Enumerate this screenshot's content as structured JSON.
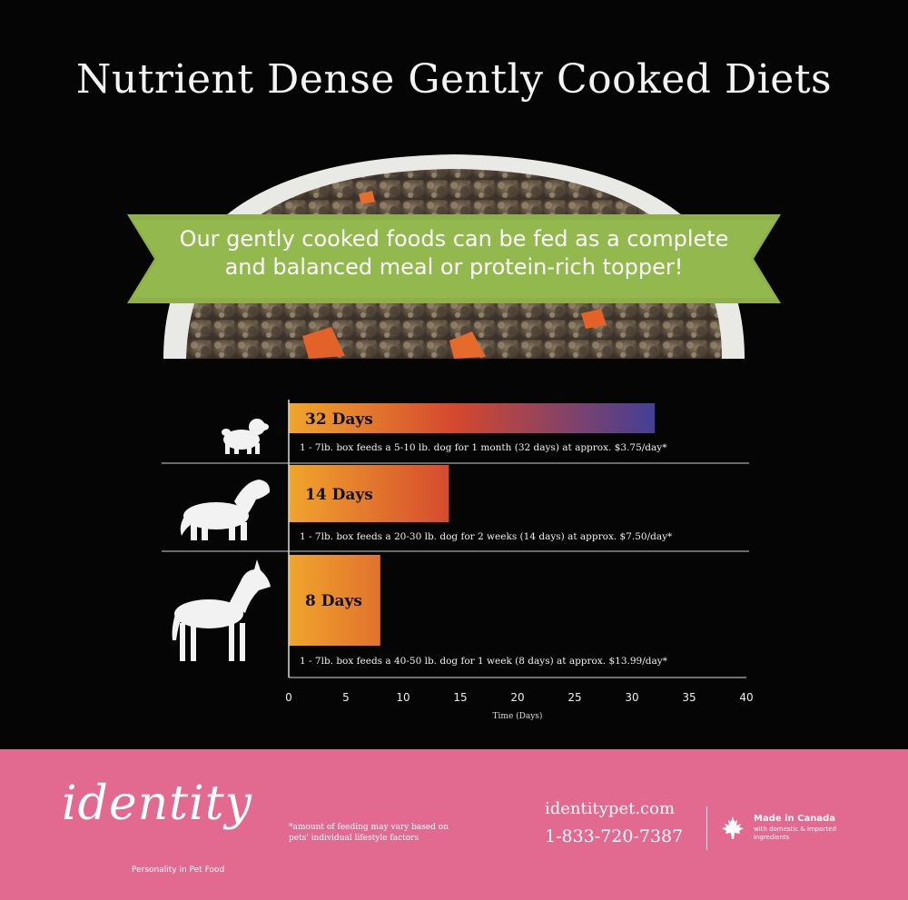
{
  "header": {
    "title": "Nutrient Dense Gently Cooked Diets"
  },
  "banner": {
    "line1": "Our gently cooked foods can be fed as a complete",
    "line2": "and balanced meal or protein-rich topper!"
  },
  "chart_data": {
    "type": "bar",
    "orientation": "horizontal",
    "categories": [
      "small-dog",
      "medium-dog",
      "large-dog"
    ],
    "values": [
      32,
      14,
      8
    ],
    "bar_labels": [
      "32 Days",
      "14 Days",
      "8 Days"
    ],
    "notes": [
      "1 - 7lb. box feeds a 5-10 lb. dog for 1 month (32 days) at approx. $3.75/day*",
      "1 - 7lb. box feeds a 20-30 lb. dog for 2 weeks (14 days) at approx. $7.50/day*",
      "1 - 7lb. box feeds a 40-50 lb. dog for 1 week (8 days) at approx. $13.99/day*"
    ],
    "xlabel": "Time (Days)",
    "xlim": [
      0,
      40
    ],
    "xticks": [
      0,
      5,
      10,
      15,
      20,
      25,
      30,
      35,
      40
    ],
    "grid": false,
    "colors": {
      "gradient_start": "#f0a52c",
      "gradient_mid": "#d4472e",
      "gradient_end": "#3f3f99"
    }
  },
  "footer": {
    "brand": "identity",
    "tagline": "Personality in Pet Food",
    "disclaimer_line1": "*amount of feeding may vary based on",
    "disclaimer_line2": "pets' individual lifestyle factors",
    "website": "identitypet.com",
    "phone": "1-833-720-7387",
    "made_in": "Made in Canada",
    "made_in_sub": "with domestic & imported ingredients",
    "background": "#e2698f"
  }
}
